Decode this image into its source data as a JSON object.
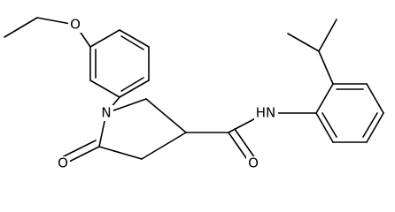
{
  "atoms": [
    "O",
    "N",
    "O",
    "HN",
    "O"
  ]
}
